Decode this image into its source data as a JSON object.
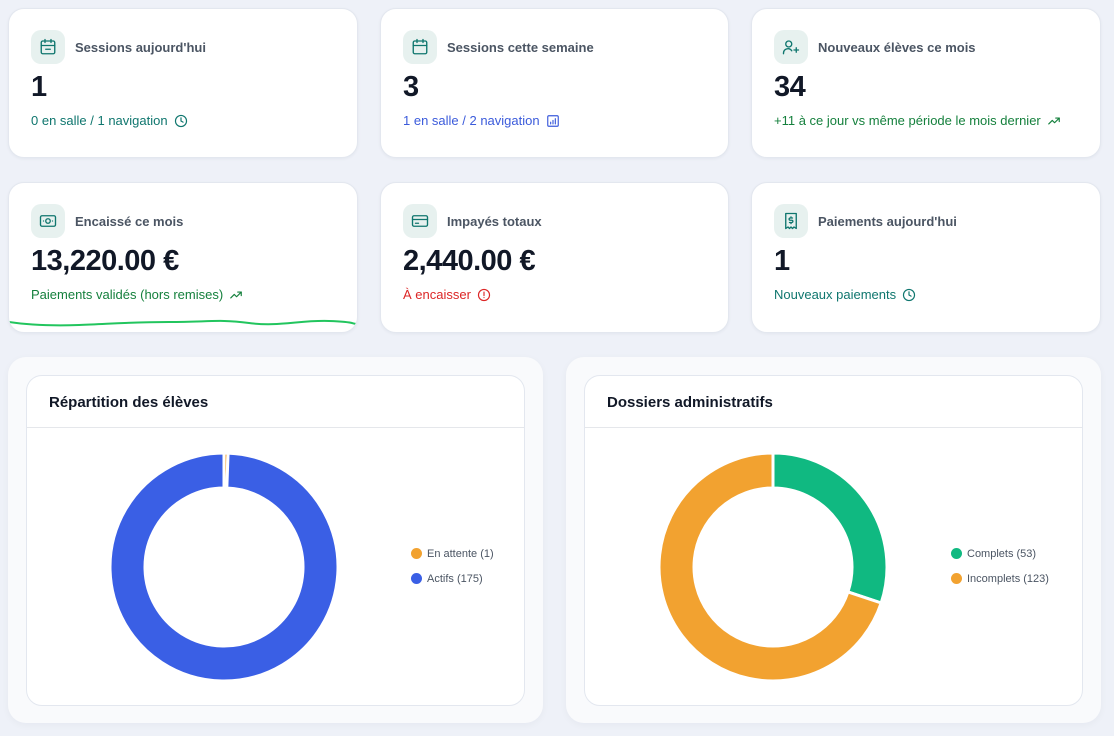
{
  "stats": [
    {
      "title": "Sessions aujourd'hui",
      "value": "1",
      "sub": "0 en salle / 1 navigation",
      "icon": "calendar-today-icon",
      "sub_icon": "clock-icon"
    },
    {
      "title": "Sessions cette semaine",
      "value": "3",
      "sub": "1 en salle / 2 navigation",
      "icon": "calendar-icon",
      "sub_icon": "bar-chart-icon"
    },
    {
      "title": "Nouveaux élèves ce mois",
      "value": "34",
      "sub": "+11 à ce jour vs même période le mois dernier",
      "icon": "user-plus-icon",
      "sub_icon": "trending-up-icon"
    },
    {
      "title": "Encaissé ce mois",
      "value": "13,220.00 €",
      "sub": "Paiements validés (hors remises)",
      "icon": "banknote-icon",
      "sub_icon": "trending-up-icon"
    },
    {
      "title": "Impayés totaux",
      "value": "2,440.00 €",
      "sub": "À encaisser",
      "icon": "credit-card-icon",
      "sub_icon": "alert-circle-icon"
    },
    {
      "title": "Paiements aujourd'hui",
      "value": "1",
      "sub": "Nouveaux paiements",
      "icon": "receipt-icon",
      "sub_icon": "clock-icon"
    }
  ],
  "colors": {
    "accent_teal": "#0f766e",
    "blue": "#3b5bdb",
    "green": "#15803d",
    "red": "#dc2626",
    "sparkline": "#22c55e"
  },
  "students_panel": {
    "title": "Répartition des élèves",
    "chart_data": {
      "type": "pie",
      "categories": [
        "En attente (1)",
        "Actifs (175)"
      ],
      "values": [
        1,
        175
      ],
      "colors": [
        "#f2a230",
        "#3a5fe5"
      ]
    }
  },
  "dossiers_panel": {
    "title": "Dossiers administratifs",
    "chart_data": {
      "type": "pie",
      "categories": [
        "Complets (53)",
        "Incomplets (123)"
      ],
      "values": [
        53,
        123
      ],
      "colors": [
        "#10b981",
        "#f2a230"
      ]
    }
  }
}
